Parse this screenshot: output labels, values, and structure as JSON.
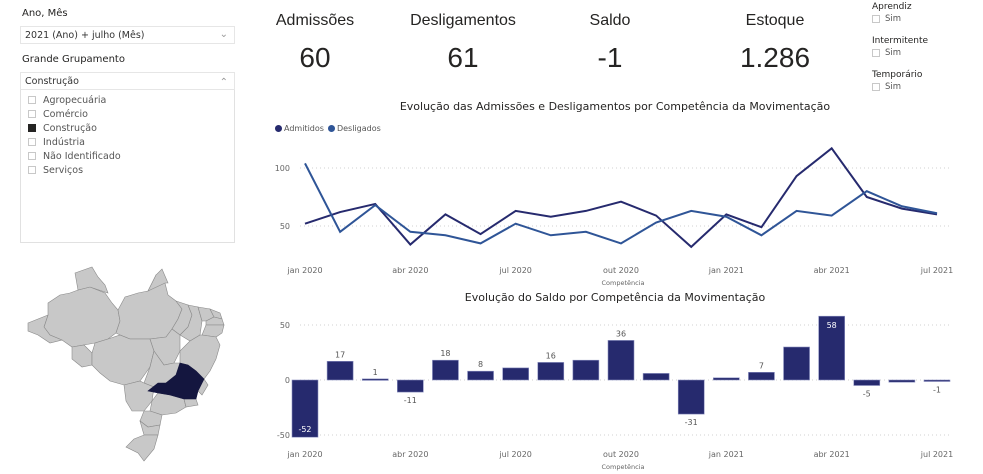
{
  "filters": {
    "ano_mes": {
      "title": "Ano, Mês",
      "value": "2021 (Ano) + julho (Mês)"
    },
    "grupamento": {
      "title": "Grande Grupamento",
      "value": "Construção",
      "options": [
        {
          "label": "Agropecuária",
          "checked": false
        },
        {
          "label": "Comércio",
          "checked": false
        },
        {
          "label": "Construção",
          "checked": true
        },
        {
          "label": "Indústria",
          "checked": false
        },
        {
          "label": "Não Identificado",
          "checked": false
        },
        {
          "label": "Serviços",
          "checked": false
        }
      ]
    },
    "flags": [
      {
        "title": "Aprendiz",
        "option": "Sim",
        "checked": false
      },
      {
        "title": "Intermitente",
        "option": "Sim",
        "checked": false
      },
      {
        "title": "Temporário",
        "option": "Sim",
        "checked": false
      }
    ]
  },
  "kpis": [
    {
      "label": "Admissões",
      "value": "60"
    },
    {
      "label": "Desligamentos",
      "value": "61"
    },
    {
      "label": "Saldo",
      "value": "-1"
    },
    {
      "label": "Estoque",
      "value": "1.286"
    }
  ],
  "map": {
    "highlighted_state": "Minas Gerais",
    "highlight_color": "#14163f",
    "base_color": "#c8c8c8"
  },
  "chart_data": [
    {
      "type": "line",
      "title": "Evolução das Admissões e Desligamentos por Competência da Movimentação",
      "xlabel": "Competência",
      "ylabel": "",
      "ylim": [
        0,
        120
      ],
      "yticks": [
        50,
        100
      ],
      "grid": true,
      "legend": "top-left",
      "x": [
        "jan 2020",
        "fev 2020",
        "mar 2020",
        "abr 2020",
        "mai 2020",
        "jun 2020",
        "jul 2020",
        "ago 2020",
        "set 2020",
        "out 2020",
        "nov 2020",
        "dez 2020",
        "jan 2021",
        "fev 2021",
        "mar 2021",
        "abr 2021",
        "mai 2021",
        "jun 2021",
        "jul 2021"
      ],
      "xtick_labels": [
        "jan 2020",
        "abr 2020",
        "jul 2020",
        "out 2020",
        "jan 2021",
        "abr 2021",
        "jul 2021"
      ],
      "series": [
        {
          "name": "Admitidos",
          "color": "#262a6e",
          "values": [
            52,
            62,
            69,
            34,
            60,
            43,
            63,
            58,
            63,
            71,
            59,
            32,
            60,
            49,
            93,
            117,
            75,
            65,
            60
          ]
        },
        {
          "name": "Desligados",
          "color": "#2f5597",
          "values": [
            104,
            45,
            68,
            45,
            42,
            35,
            52,
            42,
            45,
            35,
            53,
            63,
            58,
            42,
            63,
            59,
            80,
            67,
            61
          ]
        }
      ]
    },
    {
      "type": "bar",
      "title": "Evolução do Saldo por Competência da Movimentação",
      "xlabel": "Competência",
      "ylabel": "",
      "ylim": [
        -55,
        60
      ],
      "yticks": [
        -50,
        0,
        50
      ],
      "grid": true,
      "color": "#262a6e",
      "categories": [
        "jan 2020",
        "fev 2020",
        "mar 2020",
        "abr 2020",
        "mai 2020",
        "jun 2020",
        "jul 2020",
        "ago 2020",
        "set 2020",
        "out 2020",
        "nov 2020",
        "dez 2020",
        "jan 2021",
        "fev 2021",
        "mar 2021",
        "abr 2021",
        "mai 2021",
        "jun 2021",
        "jul 2021"
      ],
      "xtick_labels": [
        "jan 2020",
        "abr 2020",
        "jul 2020",
        "out 2020",
        "jan 2021",
        "abr 2021",
        "jul 2021"
      ],
      "values": [
        -52,
        17,
        1,
        -11,
        18,
        8,
        11,
        16,
        18,
        36,
        6,
        -31,
        2,
        7,
        30,
        58,
        -5,
        -2,
        -1
      ],
      "data_labels": [
        "-52",
        "17",
        "1",
        "-11",
        "18",
        "8",
        "",
        "16",
        "",
        "36",
        "",
        "-31",
        "",
        "7",
        "",
        "58",
        "-5",
        "",
        "-1"
      ]
    }
  ]
}
